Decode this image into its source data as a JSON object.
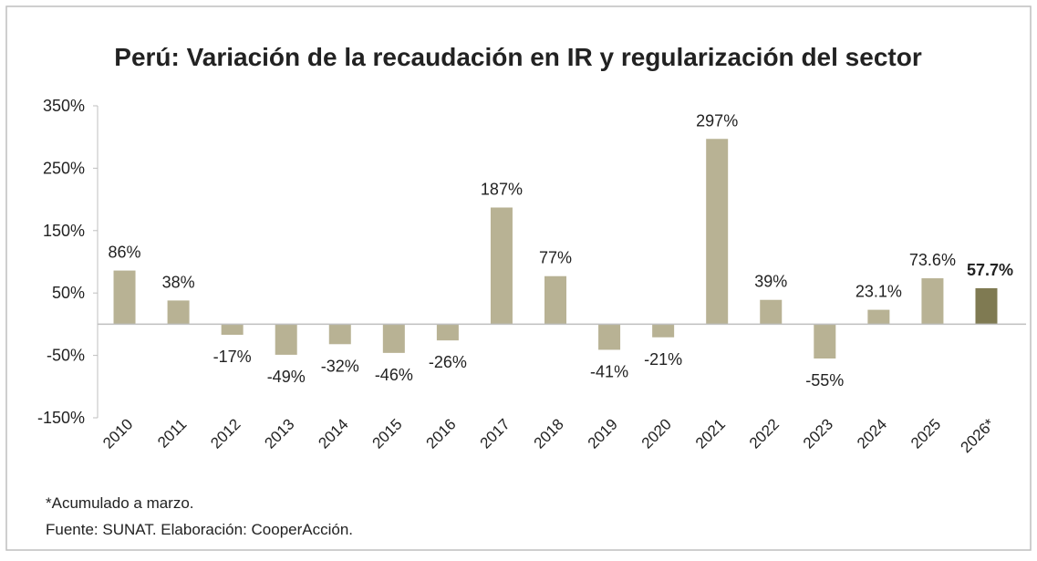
{
  "chart_data": {
    "type": "bar",
    "title": "Perú: Variación de la recaudación en IR y regularización del sector",
    "categories": [
      "2010",
      "2011",
      "2012",
      "2013",
      "2014",
      "2015",
      "2016",
      "2017",
      "2018",
      "2019",
      "2020",
      "2021",
      "2022",
      "2023",
      "2024",
      "2025",
      "2026*"
    ],
    "values": [
      86,
      38,
      -17,
      -49,
      -32,
      -46,
      -26,
      187,
      77,
      -41,
      -21,
      297,
      39,
      -55,
      23.1,
      73.6,
      57.7
    ],
    "value_labels": [
      "86%",
      "38%",
      "-17%",
      "-49%",
      "-32%",
      "-46%",
      "-26%",
      "187%",
      "77%",
      "-41%",
      "-21%",
      "297%",
      "39%",
      "-55%",
      "23.1%",
      "73.6%",
      "57.7%"
    ],
    "colors": [
      "#b8b294",
      "#b8b294",
      "#b8b294",
      "#b8b294",
      "#b8b294",
      "#b8b294",
      "#b8b294",
      "#b8b294",
      "#b8b294",
      "#b8b294",
      "#b8b294",
      "#b8b294",
      "#b8b294",
      "#b8b294",
      "#b8b294",
      "#b8b294",
      "#7f7a52"
    ],
    "ylim": [
      -150,
      350
    ],
    "yticks": [
      {
        "value": -150,
        "label": "-150%"
      },
      {
        "value": -50,
        "label": "-50%"
      },
      {
        "value": 50,
        "label": "50%"
      },
      {
        "value": 150,
        "label": "150%"
      },
      {
        "value": 250,
        "label": "250%"
      },
      {
        "value": 350,
        "label": "350%"
      }
    ],
    "notes": [
      "*Acumulado a marzo.",
      "Fuente: SUNAT. Elaboración: CooperAcción."
    ]
  }
}
